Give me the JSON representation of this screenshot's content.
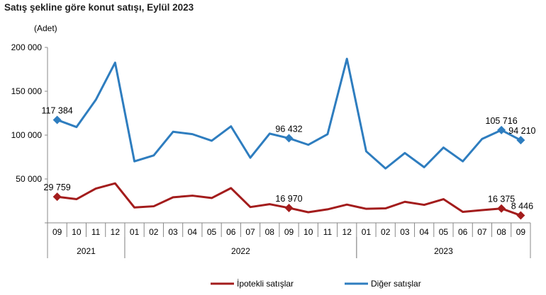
{
  "chart_data": {
    "type": "line",
    "title": "Satış şekline göre konut satışı, Eylül 2023",
    "ylabel": "(Adet)",
    "xlabel": "",
    "ylim": [
      0,
      200000
    ],
    "yticks": [
      0,
      50000,
      100000,
      150000,
      200000
    ],
    "ytick_labels": [
      "",
      "50 000",
      "100 000",
      "150 000",
      "200 000"
    ],
    "categories": [
      "09",
      "10",
      "11",
      "12",
      "01",
      "02",
      "03",
      "04",
      "05",
      "06",
      "07",
      "08",
      "09",
      "10",
      "11",
      "12",
      "01",
      "02",
      "03",
      "04",
      "05",
      "06",
      "07",
      "08",
      "09"
    ],
    "year_groups": [
      {
        "label": "2021",
        "start": 0,
        "end": 3
      },
      {
        "label": "2022",
        "start": 4,
        "end": 15
      },
      {
        "label": "2023",
        "start": 16,
        "end": 24
      }
    ],
    "grid": false,
    "legend_position": "bottom",
    "series": [
      {
        "name": "İpotekli satışlar",
        "color": "#a31c1c",
        "values": [
          29759,
          27000,
          39100,
          45000,
          17500,
          18900,
          29100,
          31000,
          28300,
          39600,
          18000,
          21300,
          16970,
          12100,
          15400,
          20800,
          16000,
          16500,
          24000,
          20500,
          27000,
          12500,
          14500,
          16375,
          8446
        ],
        "labeled": [
          {
            "index": 0,
            "label": "29 759"
          },
          {
            "index": 12,
            "label": "16 970"
          },
          {
            "index": 23,
            "label": "16 375"
          },
          {
            "index": 24,
            "label": "8 446"
          }
        ]
      },
      {
        "name": "Diğer satışlar",
        "color": "#2e7dbf",
        "values": [
          117384,
          109200,
          140200,
          182600,
          70100,
          76900,
          103800,
          101100,
          93600,
          110000,
          74200,
          101700,
          96432,
          89000,
          101100,
          187000,
          81500,
          62000,
          79600,
          63400,
          85800,
          70100,
          95700,
          105716,
          94210
        ],
        "labeled": [
          {
            "index": 0,
            "label": "117 384"
          },
          {
            "index": 12,
            "label": "96 432"
          },
          {
            "index": 23,
            "label": "105 716"
          },
          {
            "index": 24,
            "label": "94 210"
          }
        ]
      }
    ]
  }
}
